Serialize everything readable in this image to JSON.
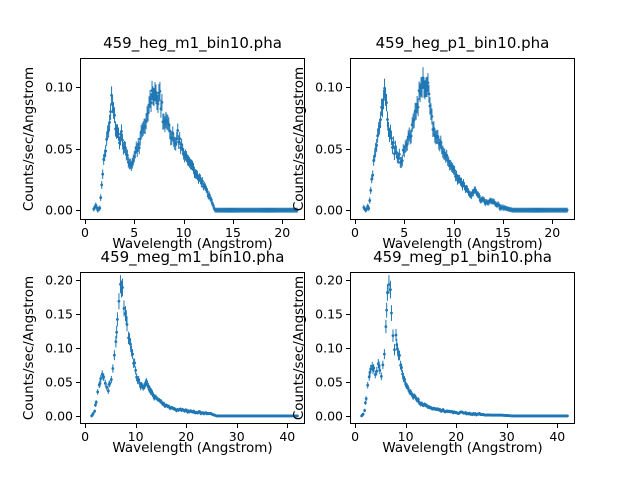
{
  "figure": {
    "background": "#ffffff",
    "text_color": "#000000"
  },
  "chart_data": [
    {
      "type": "errorbar",
      "title": "459_heg_m1_bin10.pha",
      "xlabel": "Wavelength (Angstrom)",
      "ylabel": "Counts/sec/Angstrom",
      "xlim": [
        -0.5,
        22.3
      ],
      "ylim": [
        -0.008,
        0.124
      ],
      "xticks": [
        0,
        5,
        10,
        15,
        20
      ],
      "xtick_labels": [
        "0",
        "5",
        "10",
        "15",
        "20"
      ],
      "yticks": [
        0.0,
        0.05,
        0.1
      ],
      "ytick_labels": [
        "0.00",
        "0.05",
        "0.10"
      ],
      "color": "#1f77b4",
      "step": 0.1,
      "points": [
        [
          0.9,
          0.001
        ],
        [
          1.1,
          0.004
        ],
        [
          1.3,
          0.0
        ],
        [
          1.5,
          0.002
        ],
        [
          1.7,
          0.02
        ],
        [
          1.9,
          0.04
        ],
        [
          2.1,
          0.05
        ],
        [
          2.3,
          0.06
        ],
        [
          2.5,
          0.072
        ],
        [
          2.7,
          0.088
        ],
        [
          2.9,
          0.08
        ],
        [
          3.1,
          0.07
        ],
        [
          3.3,
          0.06
        ],
        [
          3.5,
          0.055
        ],
        [
          3.7,
          0.062
        ],
        [
          3.9,
          0.052
        ],
        [
          4.1,
          0.048
        ],
        [
          4.4,
          0.04
        ],
        [
          4.7,
          0.037
        ],
        [
          5.0,
          0.044
        ],
        [
          5.3,
          0.05
        ],
        [
          5.6,
          0.058
        ],
        [
          5.9,
          0.066
        ],
        [
          6.2,
          0.075
        ],
        [
          6.5,
          0.085
        ],
        [
          6.8,
          0.098
        ],
        [
          7.0,
          0.09
        ],
        [
          7.2,
          0.1
        ],
        [
          7.4,
          0.088
        ],
        [
          7.6,
          0.095
        ],
        [
          7.8,
          0.082
        ],
        [
          8.0,
          0.072
        ],
        [
          8.2,
          0.078
        ],
        [
          8.5,
          0.068
        ],
        [
          8.8,
          0.06
        ],
        [
          9.1,
          0.055
        ],
        [
          9.4,
          0.062
        ],
        [
          9.7,
          0.052
        ],
        [
          10.0,
          0.046
        ],
        [
          10.3,
          0.042
        ],
        [
          10.7,
          0.038
        ],
        [
          11.1,
          0.032
        ],
        [
          11.5,
          0.027
        ],
        [
          11.9,
          0.022
        ],
        [
          12.3,
          0.016
        ],
        [
          12.7,
          0.01
        ],
        [
          13.0,
          0.004
        ],
        [
          13.2,
          0.0
        ],
        [
          21.5,
          0.0
        ]
      ]
    },
    {
      "type": "errorbar",
      "title": "459_heg_p1_bin10.pha",
      "xlabel": "Wavelength (Angstrom)",
      "ylabel": "Counts/sec/Angstrom",
      "xlim": [
        -0.5,
        22.3
      ],
      "ylim": [
        -0.008,
        0.124
      ],
      "xticks": [
        0,
        5,
        10,
        15,
        20
      ],
      "xtick_labels": [
        "0",
        "5",
        "10",
        "15",
        "20"
      ],
      "yticks": [
        0.0,
        0.05,
        0.1
      ],
      "ytick_labels": [
        "0.00",
        "0.05",
        "0.10"
      ],
      "color": "#1f77b4",
      "step": 0.1,
      "points": [
        [
          0.9,
          0.002
        ],
        [
          1.1,
          0.0
        ],
        [
          1.4,
          0.003
        ],
        [
          1.6,
          0.015
        ],
        [
          1.8,
          0.03
        ],
        [
          2.0,
          0.045
        ],
        [
          2.2,
          0.055
        ],
        [
          2.4,
          0.065
        ],
        [
          2.6,
          0.078
        ],
        [
          2.8,
          0.09
        ],
        [
          3.0,
          0.1
        ],
        [
          3.2,
          0.085
        ],
        [
          3.4,
          0.07
        ],
        [
          3.6,
          0.06
        ],
        [
          3.8,
          0.055
        ],
        [
          4.0,
          0.05
        ],
        [
          4.3,
          0.045
        ],
        [
          4.6,
          0.04
        ],
        [
          4.9,
          0.045
        ],
        [
          5.2,
          0.052
        ],
        [
          5.5,
          0.06
        ],
        [
          5.8,
          0.068
        ],
        [
          6.1,
          0.078
        ],
        [
          6.4,
          0.088
        ],
        [
          6.7,
          0.1
        ],
        [
          6.9,
          0.112
        ],
        [
          7.1,
          0.095
        ],
        [
          7.3,
          0.105
        ],
        [
          7.5,
          0.09
        ],
        [
          7.7,
          0.08
        ],
        [
          7.9,
          0.07
        ],
        [
          8.2,
          0.062
        ],
        [
          8.5,
          0.055
        ],
        [
          8.8,
          0.05
        ],
        [
          9.1,
          0.044
        ],
        [
          9.4,
          0.04
        ],
        [
          9.8,
          0.035
        ],
        [
          10.2,
          0.03
        ],
        [
          10.6,
          0.025
        ],
        [
          11.0,
          0.02
        ],
        [
          11.4,
          0.016
        ],
        [
          11.8,
          0.012
        ],
        [
          12.2,
          0.015
        ],
        [
          12.6,
          0.01
        ],
        [
          13.0,
          0.007
        ],
        [
          13.4,
          0.005
        ],
        [
          13.8,
          0.008
        ],
        [
          14.2,
          0.005
        ],
        [
          14.6,
          0.003
        ],
        [
          15.0,
          0.002
        ],
        [
          15.5,
          0.001
        ],
        [
          16.0,
          0.0
        ],
        [
          21.5,
          0.0
        ]
      ]
    },
    {
      "type": "errorbar",
      "title": "459_meg_m1_bin10.pha",
      "xlabel": "Wavelength (Angstrom)",
      "ylabel": "Counts/sec/Angstrom",
      "xlim": [
        -1.0,
        43.5
      ],
      "ylim": [
        -0.012,
        0.212
      ],
      "xticks": [
        0,
        10,
        20,
        30,
        40
      ],
      "xtick_labels": [
        "0",
        "10",
        "20",
        "30",
        "40"
      ],
      "yticks": [
        0.0,
        0.05,
        0.1,
        0.15,
        0.2
      ],
      "ytick_labels": [
        "0.00",
        "0.05",
        "0.10",
        "0.15",
        "0.20"
      ],
      "color": "#1f77b4",
      "step": 0.2,
      "points": [
        [
          1.3,
          0.0
        ],
        [
          1.6,
          0.003
        ],
        [
          1.9,
          0.008
        ],
        [
          2.2,
          0.02
        ],
        [
          2.5,
          0.035
        ],
        [
          2.8,
          0.045
        ],
        [
          3.1,
          0.055
        ],
        [
          3.4,
          0.06
        ],
        [
          3.7,
          0.055
        ],
        [
          4.0,
          0.05
        ],
        [
          4.3,
          0.042
        ],
        [
          4.6,
          0.04
        ],
        [
          4.9,
          0.048
        ],
        [
          5.2,
          0.055
        ],
        [
          5.5,
          0.07
        ],
        [
          5.8,
          0.09
        ],
        [
          6.1,
          0.11
        ],
        [
          6.4,
          0.14
        ],
        [
          6.7,
          0.165
        ],
        [
          7.0,
          0.19
        ],
        [
          7.2,
          0.175
        ],
        [
          7.4,
          0.185
        ],
        [
          7.7,
          0.165
        ],
        [
          8.0,
          0.15
        ],
        [
          8.3,
          0.135
        ],
        [
          8.6,
          0.12
        ],
        [
          9.0,
          0.105
        ],
        [
          9.4,
          0.09
        ],
        [
          9.8,
          0.075
        ],
        [
          10.2,
          0.062
        ],
        [
          10.6,
          0.052
        ],
        [
          11.0,
          0.045
        ],
        [
          11.5,
          0.04
        ],
        [
          12.0,
          0.05
        ],
        [
          12.5,
          0.044
        ],
        [
          13.0,
          0.035
        ],
        [
          13.5,
          0.03
        ],
        [
          14.0,
          0.026
        ],
        [
          14.7,
          0.022
        ],
        [
          15.4,
          0.018
        ],
        [
          16.1,
          0.015
        ],
        [
          16.8,
          0.013
        ],
        [
          17.5,
          0.011
        ],
        [
          18.5,
          0.009
        ],
        [
          19.5,
          0.008
        ],
        [
          20.5,
          0.007
        ],
        [
          21.5,
          0.006
        ],
        [
          22.5,
          0.005
        ],
        [
          23.5,
          0.004
        ],
        [
          24.5,
          0.003
        ],
        [
          25.3,
          0.002
        ],
        [
          26.0,
          0.0
        ],
        [
          42.0,
          0.0
        ]
      ]
    },
    {
      "type": "errorbar",
      "title": "459_meg_p1_bin10.pha",
      "xlabel": "Wavelength (Angstrom)",
      "ylabel": "Counts/sec/Angstrom",
      "xlim": [
        -1.0,
        43.5
      ],
      "ylim": [
        -0.012,
        0.212
      ],
      "xticks": [
        0,
        10,
        20,
        30,
        40
      ],
      "xtick_labels": [
        "0",
        "10",
        "20",
        "30",
        "40"
      ],
      "yticks": [
        0.0,
        0.05,
        0.1,
        0.15,
        0.2
      ],
      "ytick_labels": [
        "0.00",
        "0.05",
        "0.10",
        "0.15",
        "0.20"
      ],
      "color": "#1f77b4",
      "step": 0.2,
      "points": [
        [
          1.3,
          0.0
        ],
        [
          1.6,
          0.004
        ],
        [
          1.9,
          0.01
        ],
        [
          2.2,
          0.025
        ],
        [
          2.5,
          0.045
        ],
        [
          2.8,
          0.06
        ],
        [
          3.1,
          0.07
        ],
        [
          3.4,
          0.075
        ],
        [
          3.7,
          0.065
        ],
        [
          4.0,
          0.06
        ],
        [
          4.3,
          0.07
        ],
        [
          4.6,
          0.078
        ],
        [
          4.9,
          0.065
        ],
        [
          5.2,
          0.06
        ],
        [
          5.5,
          0.07
        ],
        [
          5.8,
          0.09
        ],
        [
          6.1,
          0.13
        ],
        [
          6.4,
          0.17
        ],
        [
          6.7,
          0.195
        ],
        [
          7.0,
          0.185
        ],
        [
          7.2,
          0.16
        ],
        [
          7.5,
          0.12
        ],
        [
          7.8,
          0.105
        ],
        [
          8.1,
          0.115
        ],
        [
          8.4,
          0.1
        ],
        [
          8.8,
          0.085
        ],
        [
          9.2,
          0.07
        ],
        [
          9.6,
          0.058
        ],
        [
          10.0,
          0.048
        ],
        [
          10.5,
          0.04
        ],
        [
          11.0,
          0.034
        ],
        [
          11.5,
          0.03
        ],
        [
          12.0,
          0.026
        ],
        [
          12.5,
          0.022
        ],
        [
          13.0,
          0.019
        ],
        [
          14.0,
          0.015
        ],
        [
          15.0,
          0.012
        ],
        [
          16.0,
          0.01
        ],
        [
          17.0,
          0.008
        ],
        [
          18.0,
          0.007
        ],
        [
          19.0,
          0.006
        ],
        [
          20.0,
          0.005
        ],
        [
          21.5,
          0.004
        ],
        [
          23.0,
          0.003
        ],
        [
          25.0,
          0.002
        ],
        [
          27.0,
          0.001
        ],
        [
          29.0,
          0.001
        ],
        [
          31.0,
          0.0
        ],
        [
          42.0,
          0.0
        ]
      ]
    }
  ]
}
